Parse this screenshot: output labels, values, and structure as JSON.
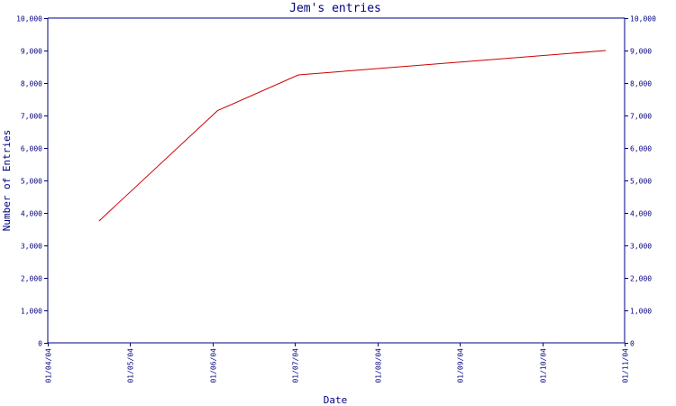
{
  "chart_data": {
    "type": "line",
    "title": "Jem's entries",
    "xlabel": "Date",
    "ylabel": "Number of Entries",
    "x_ticks": [
      "01/04/04",
      "01/05/04",
      "01/06/04",
      "01/07/04",
      "01/08/04",
      "01/09/04",
      "01/10/04",
      "01/11/04"
    ],
    "y_ticks": [
      "0",
      "1,000",
      "2,000",
      "3,000",
      "4,000",
      "5,000",
      "6,000",
      "7,000",
      "8,000",
      "9,000",
      "10,000"
    ],
    "xlim": [
      "2004-04-01",
      "2004-11-01"
    ],
    "ylim": [
      0,
      10000
    ],
    "grid": false,
    "right_axis": true,
    "series": [
      {
        "color": "#cc0000",
        "x": [
          "2004-04-20",
          "2004-06-03",
          "2004-07-03",
          "2004-10-25"
        ],
        "values": [
          3750,
          7150,
          8250,
          9000
        ]
      }
    ]
  }
}
